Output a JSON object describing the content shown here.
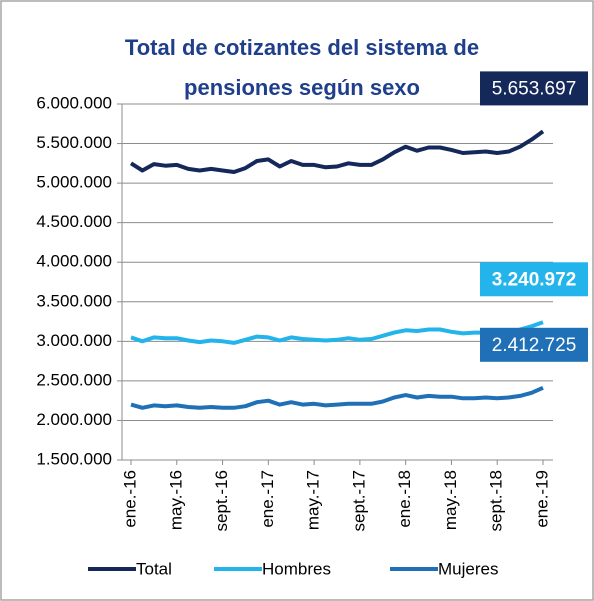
{
  "chart_data": {
    "type": "line",
    "title": "Total de cotizantes del sistema de pensiones según sexo",
    "categories": [
      "ene.-16",
      null,
      null,
      null,
      "may.-16",
      null,
      null,
      null,
      "sept.-16",
      null,
      null,
      null,
      "ene.-17",
      null,
      null,
      null,
      "may.-17",
      null,
      null,
      null,
      "sept.-17",
      null,
      null,
      null,
      "ene.-18",
      null,
      null,
      null,
      "may.-18",
      null,
      null,
      null,
      "sept.-18",
      null,
      null,
      null,
      "ene.-19"
    ],
    "ylim": [
      1500000,
      6000000
    ],
    "yticks": [
      {
        "value": 1500000,
        "label": "1.500.000"
      },
      {
        "value": 2000000,
        "label": "2.000.000"
      },
      {
        "value": 2500000,
        "label": "2.500.000"
      },
      {
        "value": 3000000,
        "label": "3.000.000"
      },
      {
        "value": 3500000,
        "label": "3.500.000"
      },
      {
        "value": 4000000,
        "label": "4.000.000"
      },
      {
        "value": 4500000,
        "label": "4.500.000"
      },
      {
        "value": 5000000,
        "label": "5.000.000"
      },
      {
        "value": 5500000,
        "label": "5.500.000"
      },
      {
        "value": 6000000,
        "label": "6.000.000"
      }
    ],
    "grid": true,
    "legend": "bottom",
    "series": [
      {
        "name": "Total",
        "color": "#14285a",
        "values": [
          5250000,
          5160000,
          5240000,
          5220000,
          5230000,
          5180000,
          5160000,
          5180000,
          5160000,
          5140000,
          5190000,
          5280000,
          5300000,
          5210000,
          5280000,
          5230000,
          5230000,
          5200000,
          5210000,
          5250000,
          5230000,
          5230000,
          5300000,
          5390000,
          5460000,
          5410000,
          5450000,
          5450000,
          5420000,
          5380000,
          5390000,
          5400000,
          5380000,
          5400000,
          5460000,
          5550000,
          5653697
        ],
        "value_labels": [
          null,
          null,
          null,
          null,
          null,
          null,
          null,
          null,
          null,
          null,
          null,
          null,
          null,
          null,
          null,
          null,
          null,
          null,
          null,
          null,
          null,
          null,
          null,
          null,
          null,
          null,
          null,
          null,
          null,
          null,
          null,
          null,
          null,
          null,
          null,
          null,
          "5.653.697"
        ]
      },
      {
        "name": "Hombres",
        "color": "#22b4ea",
        "values": [
          3050000,
          3000000,
          3050000,
          3040000,
          3040000,
          3010000,
          2990000,
          3010000,
          3000000,
          2980000,
          3020000,
          3060000,
          3050000,
          3010000,
          3050000,
          3030000,
          3020000,
          3010000,
          3020000,
          3040000,
          3020000,
          3030000,
          3070000,
          3110000,
          3140000,
          3130000,
          3150000,
          3150000,
          3120000,
          3100000,
          3110000,
          3110000,
          3100000,
          3110000,
          3150000,
          3190000,
          3240972
        ],
        "value_labels": [
          null,
          null,
          null,
          null,
          null,
          null,
          null,
          null,
          null,
          null,
          null,
          null,
          null,
          null,
          null,
          null,
          null,
          null,
          null,
          null,
          null,
          null,
          null,
          null,
          null,
          null,
          null,
          null,
          null,
          null,
          null,
          null,
          null,
          null,
          null,
          null,
          "3.240.972"
        ]
      },
      {
        "name": "Mujeres",
        "color": "#1f70b6",
        "values": [
          2200000,
          2160000,
          2190000,
          2180000,
          2190000,
          2170000,
          2160000,
          2170000,
          2160000,
          2160000,
          2180000,
          2230000,
          2250000,
          2200000,
          2230000,
          2200000,
          2210000,
          2190000,
          2200000,
          2210000,
          2210000,
          2210000,
          2240000,
          2290000,
          2320000,
          2290000,
          2310000,
          2300000,
          2300000,
          2280000,
          2280000,
          2290000,
          2280000,
          2290000,
          2310000,
          2350000,
          2412725
        ],
        "value_labels": [
          null,
          null,
          null,
          null,
          null,
          null,
          null,
          null,
          null,
          null,
          null,
          null,
          null,
          null,
          null,
          null,
          null,
          null,
          null,
          null,
          null,
          null,
          null,
          null,
          null,
          null,
          null,
          null,
          null,
          null,
          null,
          null,
          null,
          null,
          null,
          null,
          "2.412.725"
        ]
      }
    ]
  }
}
